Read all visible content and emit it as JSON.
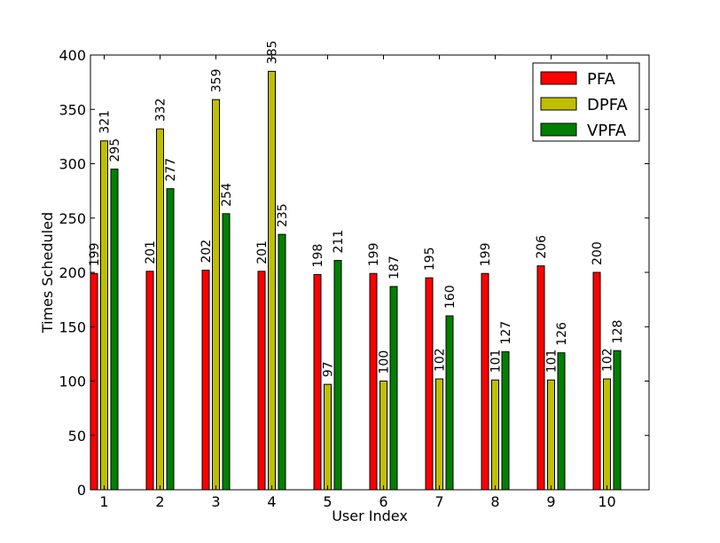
{
  "chart_data": {
    "type": "bar",
    "title": "",
    "xlabel": "User Index",
    "ylabel": "Times Scheduled",
    "categories": [
      "1",
      "2",
      "3",
      "4",
      "5",
      "6",
      "7",
      "8",
      "9",
      "10"
    ],
    "ylim": [
      0,
      400
    ],
    "yticks": [
      0,
      50,
      100,
      150,
      200,
      250,
      300,
      350,
      400
    ],
    "legend_position": "top-right",
    "series": [
      {
        "name": "PFA",
        "color": "#ff0000",
        "values": [
          199,
          201,
          202,
          201,
          198,
          199,
          195,
          199,
          206,
          200
        ]
      },
      {
        "name": "DPFA",
        "color": "#bfbf00",
        "values": [
          321,
          332,
          359,
          385,
          97,
          100,
          102,
          101,
          101,
          102
        ]
      },
      {
        "name": "VPFA",
        "color": "#008000",
        "values": [
          295,
          277,
          254,
          235,
          211,
          187,
          160,
          127,
          126,
          128
        ]
      }
    ]
  }
}
